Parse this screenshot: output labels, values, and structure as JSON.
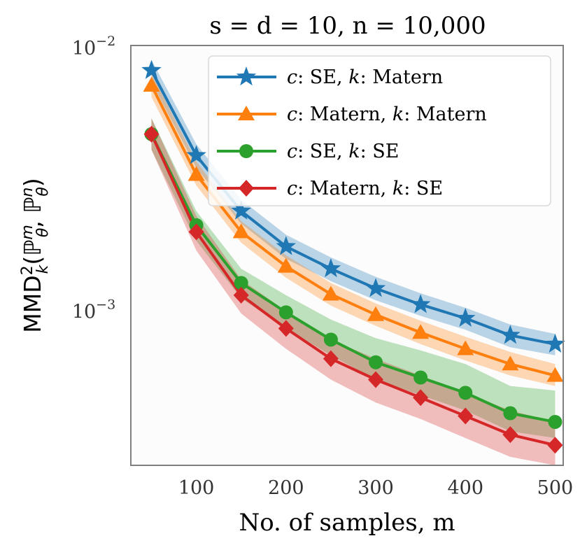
{
  "chart_data": {
    "type": "line",
    "title": "s = d = 10, n = 10,000",
    "xlabel": "No. of samples, m",
    "ylabel": "MMD_k^2(P_theta^m, P_theta^n)",
    "ylabel_parts": {
      "base": "MMD",
      "sup": "2",
      "sub": "k",
      "args": "(ℙ",
      "arg1_sup": "m",
      "arg1_sub": "θ",
      "sep": ", ℙ",
      "arg2_sup": "n",
      "arg2_sub": "θ",
      "close": ")"
    },
    "yscale": "log",
    "xlim": [
      27,
      509
    ],
    "ylim": [
      0.00026,
      0.0102
    ],
    "x_ticks": [
      100,
      200,
      300,
      400,
      500
    ],
    "x_tick_labels": [
      "100",
      "200",
      "300",
      "400",
      "500"
    ],
    "y_ticks": [
      0.001,
      0.01
    ],
    "y_tick_labels": [
      {
        "base": "10",
        "exp": "−3"
      },
      {
        "base": "10",
        "exp": "−2"
      }
    ],
    "legend_position": "top-right",
    "x": [
      50,
      100,
      150,
      200,
      250,
      300,
      350,
      400,
      450,
      500
    ],
    "series": [
      {
        "legend_c": "c",
        "legend_c_kernel": ": SE, ",
        "legend_k": "k",
        "legend_k_kernel": ": Matern",
        "color": "#1f77b4",
        "marker": "star",
        "values": [
          0.0082,
          0.0039,
          0.0024,
          0.00176,
          0.00145,
          0.00122,
          0.00106,
          0.00094,
          0.00081,
          0.00075
        ],
        "lower": [
          0.0074,
          0.0035,
          0.00215,
          0.00158,
          0.0013,
          0.0011,
          0.00096,
          0.00085,
          0.00073,
          0.00068
        ],
        "upper": [
          0.009,
          0.0043,
          0.00265,
          0.00195,
          0.0016,
          0.00135,
          0.00117,
          0.00103,
          0.00089,
          0.00082
        ]
      },
      {
        "legend_c": "c",
        "legend_c_kernel": ": Matern, ",
        "legend_k": "k",
        "legend_k_kernel": ": Matern",
        "color": "#ff7f0e",
        "marker": "triangle",
        "values": [
          0.0072,
          0.0033,
          0.002,
          0.00148,
          0.00116,
          0.00097,
          0.00083,
          0.00072,
          0.00063,
          0.00057
        ],
        "lower": [
          0.0065,
          0.003,
          0.00182,
          0.00134,
          0.00105,
          0.00088,
          0.00075,
          0.00065,
          0.00057,
          0.00052
        ],
        "upper": [
          0.008,
          0.0037,
          0.0022,
          0.00163,
          0.00128,
          0.00107,
          0.00092,
          0.0008,
          0.0007,
          0.00063
        ]
      },
      {
        "legend_c": "c",
        "legend_c_kernel": ": SE, ",
        "legend_k": "k",
        "legend_k_kernel": ": SE",
        "color": "#2ca02c",
        "marker": "circle",
        "values": [
          0.0047,
          0.00212,
          0.00128,
          0.00099,
          0.00078,
          0.00064,
          0.00056,
          0.00049,
          0.00041,
          0.00038
        ],
        "lower": [
          0.0041,
          0.00185,
          0.00112,
          0.00086,
          0.00068,
          0.00055,
          0.00048,
          0.00042,
          0.00035,
          0.00033
        ],
        "upper": [
          0.0054,
          0.0024,
          0.00145,
          0.00115,
          0.00093,
          0.00079,
          0.00071,
          0.00063,
          0.00052,
          0.0005
        ]
      },
      {
        "legend_c": "c",
        "legend_c_kernel": ": Matern, ",
        "legend_k": "k",
        "legend_k_kernel": ": SE",
        "color": "#d62728",
        "marker": "diamond",
        "values": [
          0.0047,
          0.002,
          0.00115,
          0.00086,
          0.00066,
          0.00055,
          0.00047,
          0.0004,
          0.00034,
          0.00031
        ],
        "lower": [
          0.0041,
          0.0017,
          0.00098,
          0.00072,
          0.00055,
          0.00045,
          0.00039,
          0.00033,
          0.00028,
          0.00026
        ],
        "upper": [
          0.0054,
          0.0023,
          0.00132,
          0.001,
          0.00078,
          0.00066,
          0.00057,
          0.00049,
          0.00042,
          0.00038
        ]
      }
    ]
  }
}
